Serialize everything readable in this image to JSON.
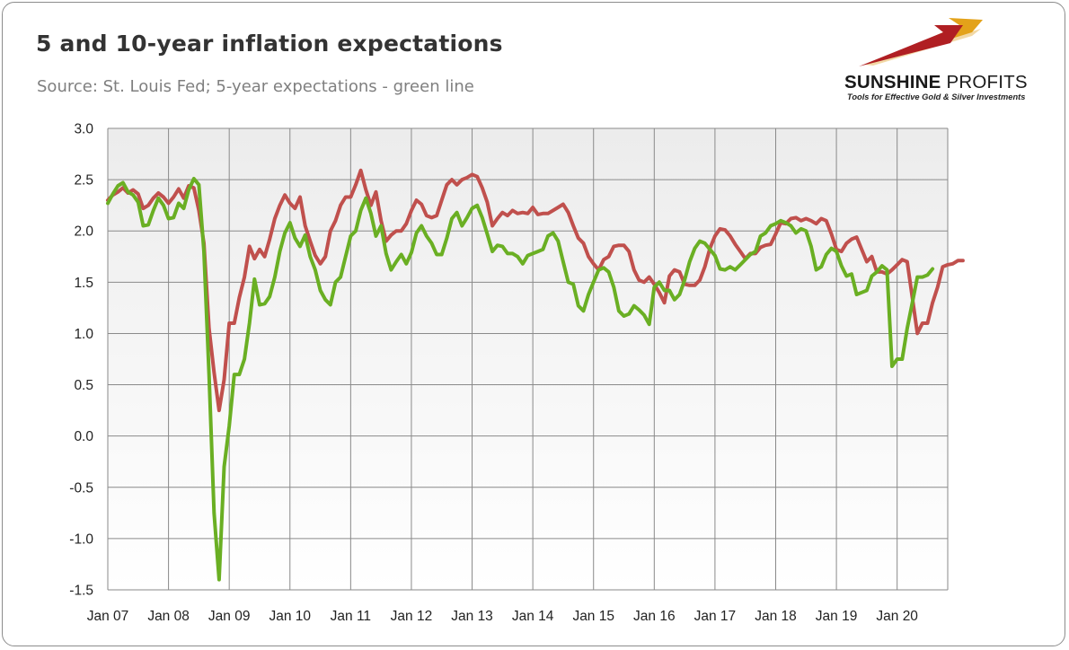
{
  "header": {
    "title": "5 and 10-year inflation expectations",
    "subtitle": "Source: St. Louis Fed; 5-year expectations - green line"
  },
  "logo": {
    "name_bold": "SUNSHINE",
    "name_light": "PROFITS",
    "tagline": "Tools for Effective Gold & Silver Investments",
    "colors": {
      "swoosh_red": "#b01f23",
      "swoosh_gold": "#e3a21a",
      "swoosh_light": "#f2d9a6"
    }
  },
  "chart_data": {
    "type": "line",
    "title": "5 and 10-year inflation expectations",
    "subtitle": "Source: St. Louis Fed; 5-year expectations - green line",
    "xlabel": "",
    "ylabel": "",
    "ylim": [
      -1.5,
      3.0
    ],
    "yticks": [
      "-1.5",
      "-1.0",
      "-0.5",
      "0.0",
      "0.5",
      "1.0",
      "1.5",
      "2.0",
      "2.5",
      "3.0"
    ],
    "xlim": [
      "2007-01",
      "2020-11"
    ],
    "xticks": [
      "Jan 07",
      "Jan 08",
      "Jan 09",
      "Jan 10",
      "Jan 11",
      "Jan 12",
      "Jan 13",
      "Jan 14",
      "Jan 15",
      "Jan 16",
      "Jan 17",
      "Jan 18",
      "Jan 19",
      "Jan 20"
    ],
    "grid": true,
    "legend": "none",
    "x_start": "2007-01",
    "x_step": "1 month",
    "series": [
      {
        "color": "#c0504d",
        "values": [
          2.3,
          2.35,
          2.38,
          2.42,
          2.37,
          2.4,
          2.36,
          2.22,
          2.25,
          2.32,
          2.37,
          2.33,
          2.27,
          2.33,
          2.41,
          2.32,
          2.44,
          2.42,
          2.2,
          1.88,
          1.05,
          0.62,
          0.25,
          0.55,
          1.1,
          1.1,
          1.35,
          1.55,
          1.85,
          1.73,
          1.82,
          1.75,
          1.92,
          2.12,
          2.25,
          2.35,
          2.27,
          2.22,
          2.33,
          2.05,
          1.9,
          1.76,
          1.68,
          1.75,
          2.0,
          2.1,
          2.25,
          2.33,
          2.33,
          2.45,
          2.59,
          2.4,
          2.25,
          2.38,
          2.1,
          1.9,
          1.96,
          2.0,
          2.0,
          2.07,
          2.2,
          2.3,
          2.26,
          2.15,
          2.13,
          2.15,
          2.3,
          2.45,
          2.5,
          2.45,
          2.5,
          2.52,
          2.55,
          2.53,
          2.42,
          2.28,
          2.05,
          2.12,
          2.18,
          2.15,
          2.2,
          2.17,
          2.18,
          2.17,
          2.23,
          2.16,
          2.17,
          2.17,
          2.2,
          2.23,
          2.26,
          2.18,
          2.05,
          1.93,
          1.88,
          1.75,
          1.68,
          1.62,
          1.72,
          1.75,
          1.85,
          1.86,
          1.86,
          1.8,
          1.62,
          1.52,
          1.5,
          1.55,
          1.48,
          1.4,
          1.3,
          1.56,
          1.62,
          1.6,
          1.48,
          1.47,
          1.47,
          1.52,
          1.65,
          1.83,
          1.95,
          2.02,
          2.01,
          1.95,
          1.87,
          1.8,
          1.73,
          1.78,
          1.78,
          1.84,
          1.86,
          1.87,
          1.97,
          2.08,
          2.07,
          2.12,
          2.13,
          2.1,
          2.12,
          2.1,
          2.07,
          2.12,
          2.1,
          1.97,
          1.82,
          1.8,
          1.88,
          1.92,
          1.94,
          1.82,
          1.7,
          1.75,
          1.6,
          1.6,
          1.58,
          1.62,
          1.67,
          1.72,
          1.7,
          1.35,
          1.0,
          1.1,
          1.1,
          1.3,
          1.45,
          1.65,
          1.67,
          1.68,
          1.71,
          1.71
        ]
      },
      {
        "color": "#6aaf23",
        "values": [
          2.27,
          2.36,
          2.44,
          2.47,
          2.38,
          2.35,
          2.28,
          2.05,
          2.06,
          2.2,
          2.32,
          2.25,
          2.12,
          2.13,
          2.27,
          2.22,
          2.4,
          2.51,
          2.45,
          1.8,
          0.6,
          -0.75,
          -1.4,
          -0.3,
          0.1,
          0.6,
          0.6,
          0.75,
          1.1,
          1.53,
          1.28,
          1.29,
          1.36,
          1.55,
          1.8,
          1.98,
          2.08,
          1.93,
          1.85,
          1.96,
          1.75,
          1.62,
          1.42,
          1.33,
          1.28,
          1.5,
          1.55,
          1.75,
          1.95,
          2.0,
          2.2,
          2.32,
          2.17,
          1.95,
          2.05,
          1.78,
          1.62,
          1.7,
          1.77,
          1.68,
          1.79,
          1.98,
          2.05,
          1.95,
          1.88,
          1.77,
          1.77,
          1.93,
          2.12,
          2.18,
          2.05,
          2.13,
          2.22,
          2.25,
          2.13,
          1.97,
          1.8,
          1.86,
          1.85,
          1.78,
          1.78,
          1.75,
          1.68,
          1.76,
          1.78,
          1.8,
          1.82,
          1.95,
          1.98,
          1.9,
          1.7,
          1.5,
          1.48,
          1.27,
          1.22,
          1.38,
          1.5,
          1.62,
          1.64,
          1.6,
          1.45,
          1.22,
          1.17,
          1.19,
          1.27,
          1.23,
          1.18,
          1.09,
          1.45,
          1.5,
          1.42,
          1.42,
          1.33,
          1.38,
          1.52,
          1.7,
          1.83,
          1.9,
          1.88,
          1.82,
          1.76,
          1.63,
          1.62,
          1.65,
          1.62,
          1.67,
          1.72,
          1.77,
          1.8,
          1.95,
          1.98,
          2.05,
          2.07,
          2.1,
          2.08,
          2.05,
          1.98,
          2.02,
          2.0,
          1.85,
          1.62,
          1.65,
          1.77,
          1.83,
          1.8,
          1.66,
          1.56,
          1.58,
          1.38,
          1.4,
          1.42,
          1.56,
          1.6,
          1.66,
          1.62,
          0.68,
          0.75,
          0.75,
          1.05,
          1.3,
          1.55,
          1.55,
          1.57,
          1.63
        ]
      }
    ]
  }
}
